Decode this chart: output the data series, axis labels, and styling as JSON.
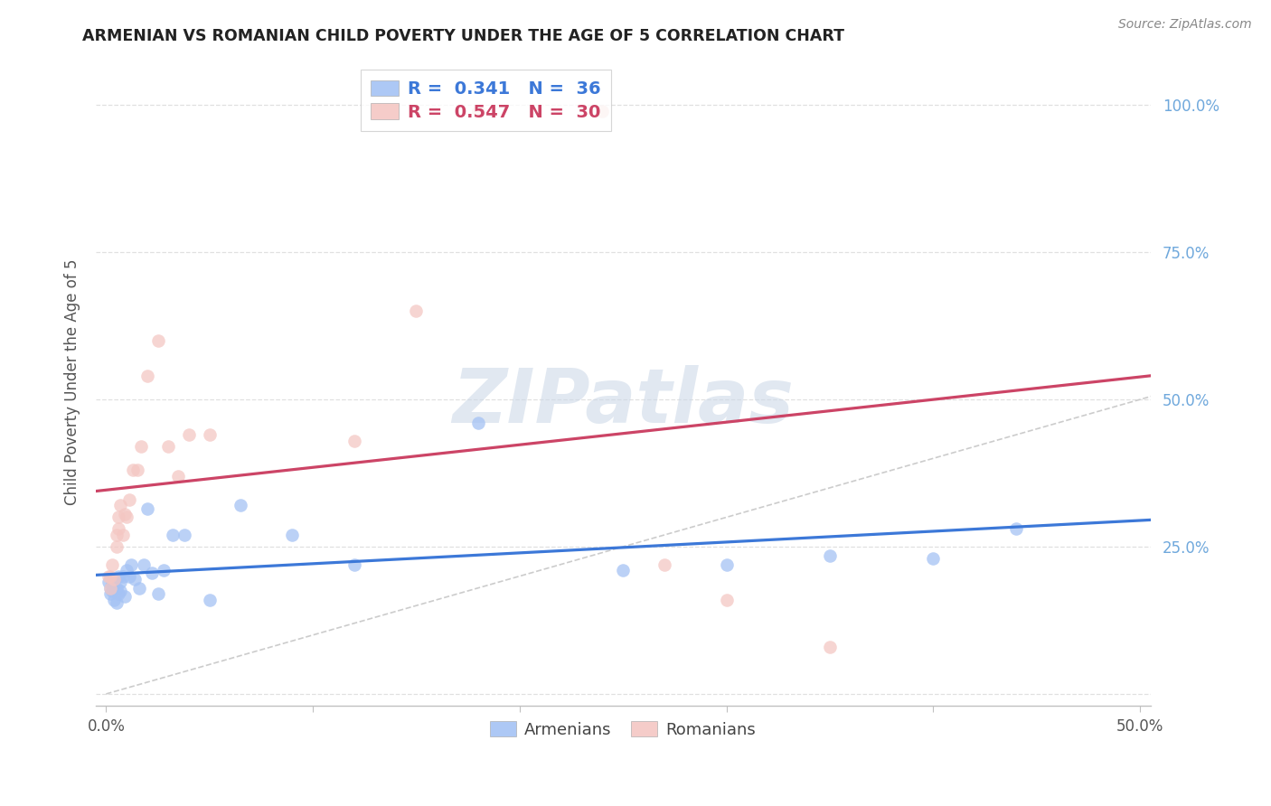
{
  "title": "ARMENIAN VS ROMANIAN CHILD POVERTY UNDER THE AGE OF 5 CORRELATION CHART",
  "source": "Source: ZipAtlas.com",
  "ylabel": "Child Poverty Under the Age of 5",
  "armenian_color": "#a4c2f4",
  "romanian_color": "#f4c7c3",
  "armenian_line_color": "#3c78d8",
  "romanian_line_color": "#cc4466",
  "ref_line_color": "#cccccc",
  "watermark_color": "#cdd9e8",
  "grid_color": "#e0e0e0",
  "title_color": "#222222",
  "source_color": "#888888",
  "axis_label_color": "#555555",
  "right_tick_color": "#6fa8dc",
  "armenians_x": [
    0.001,
    0.002,
    0.002,
    0.003,
    0.003,
    0.004,
    0.005,
    0.005,
    0.006,
    0.006,
    0.007,
    0.007,
    0.008,
    0.009,
    0.01,
    0.011,
    0.012,
    0.014,
    0.016,
    0.018,
    0.02,
    0.022,
    0.025,
    0.028,
    0.032,
    0.038,
    0.05,
    0.065,
    0.09,
    0.12,
    0.18,
    0.25,
    0.3,
    0.35,
    0.4,
    0.44
  ],
  "armenians_y": [
    0.19,
    0.18,
    0.17,
    0.19,
    0.175,
    0.16,
    0.18,
    0.155,
    0.2,
    0.17,
    0.19,
    0.175,
    0.2,
    0.165,
    0.21,
    0.2,
    0.22,
    0.195,
    0.18,
    0.22,
    0.315,
    0.205,
    0.17,
    0.21,
    0.27,
    0.27,
    0.16,
    0.32,
    0.27,
    0.22,
    0.46,
    0.21,
    0.22,
    0.235,
    0.23,
    0.28
  ],
  "romanians_x": [
    0.001,
    0.002,
    0.002,
    0.003,
    0.004,
    0.005,
    0.005,
    0.006,
    0.006,
    0.007,
    0.008,
    0.009,
    0.01,
    0.011,
    0.013,
    0.015,
    0.017,
    0.02,
    0.025,
    0.03,
    0.035,
    0.04,
    0.05,
    0.12,
    0.15,
    0.18,
    0.24,
    0.27,
    0.3,
    0.35
  ],
  "romanians_y": [
    0.2,
    0.2,
    0.18,
    0.22,
    0.195,
    0.25,
    0.27,
    0.28,
    0.3,
    0.32,
    0.27,
    0.305,
    0.3,
    0.33,
    0.38,
    0.38,
    0.42,
    0.54,
    0.6,
    0.42,
    0.37,
    0.44,
    0.44,
    0.43,
    0.65,
    0.99,
    0.99,
    0.22,
    0.16,
    0.08
  ],
  "xlim": [
    -0.005,
    0.505
  ],
  "ylim": [
    -0.02,
    1.08
  ],
  "xtick_positions": [
    0.0,
    0.1,
    0.2,
    0.3,
    0.4,
    0.5
  ],
  "ytick_positions": [
    0.0,
    0.25,
    0.5,
    0.75,
    1.0
  ],
  "watermark": "ZIPatlas",
  "scatter_size": 110
}
